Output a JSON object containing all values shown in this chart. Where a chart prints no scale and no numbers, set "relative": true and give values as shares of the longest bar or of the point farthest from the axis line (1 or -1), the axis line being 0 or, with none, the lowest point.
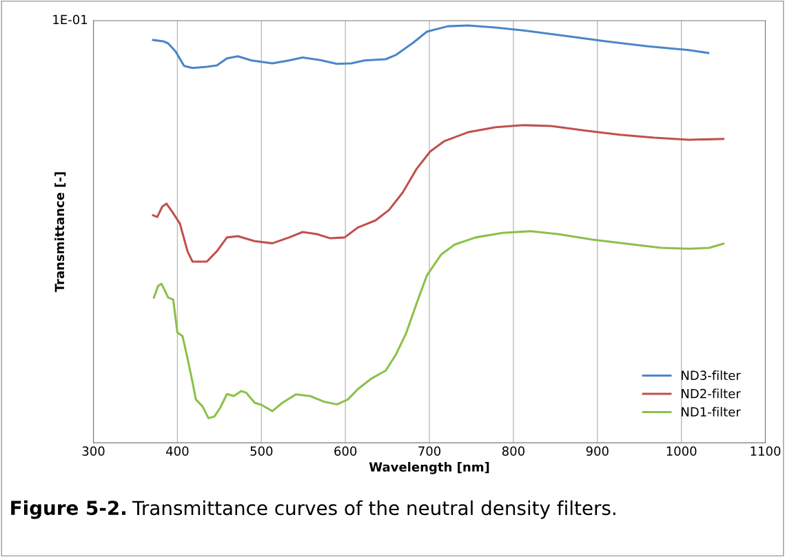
{
  "chart_data": {
    "type": "line",
    "xlabel": "Wavelength [nm]",
    "ylabel": "Transmittance [-]",
    "annotations": [
      "1E-01",
      "Figure 5-2.",
      "Transmittance curves of the neutral density filters."
    ],
    "relative": true,
    "grid": "x",
    "legend": "bottom right",
    "marker": "none",
    "line_style": "solid",
    "xlim": [
      300,
      1100
    ],
    "xticks": [
      300,
      400,
      500,
      600,
      700,
      800,
      900,
      1000,
      1100
    ],
    "series": [
      {
        "name": "ND3-filter",
        "color": "#4a86c8",
        "x": [
          371,
          383,
          389,
          398,
          408,
          418,
          435,
          447,
          459,
          472,
          488,
          513,
          533,
          549,
          570,
          590,
          607,
          623,
          648,
          660,
          681,
          697,
          722,
          746,
          779,
          812,
          861,
          910,
          960,
          1009,
          1032
        ],
        "values": [
          0.965,
          0.962,
          0.957,
          0.937,
          0.903,
          0.898,
          0.901,
          0.904,
          0.921,
          0.926,
          0.916,
          0.909,
          0.916,
          0.923,
          0.917,
          0.908,
          0.909,
          0.916,
          0.919,
          0.929,
          0.959,
          0.985,
          0.998,
          1,
          0.995,
          0.988,
          0.975,
          0.962,
          0.95,
          0.941,
          0.934
        ]
      },
      {
        "name": "ND2-filter",
        "color": "#c0504d",
        "x": [
          371,
          376,
          382,
          387,
          394,
          403,
          412,
          418,
          435,
          447,
          459,
          472,
          492,
          513,
          533,
          549,
          566,
          582,
          599,
          615,
          636,
          652,
          668,
          685,
          701,
          718,
          746,
          779,
          812,
          845,
          886,
          927,
          968,
          1009,
          1050
        ],
        "values": [
          0.545,
          0.541,
          0.566,
          0.573,
          0.553,
          0.525,
          0.459,
          0.434,
          0.434,
          0.459,
          0.492,
          0.495,
          0.483,
          0.478,
          0.492,
          0.505,
          0.5,
          0.49,
          0.492,
          0.516,
          0.533,
          0.558,
          0.599,
          0.657,
          0.698,
          0.723,
          0.744,
          0.756,
          0.761,
          0.759,
          0.748,
          0.738,
          0.731,
          0.726,
          0.728
        ]
      },
      {
        "name": "ND1-filter",
        "color": "#8cc04a",
        "x": [
          372,
          377,
          381,
          385,
          389,
          395,
          400,
          406,
          412,
          418,
          422,
          430,
          437,
          444,
          451,
          459,
          467,
          476,
          482,
          492,
          500,
          513,
          525,
          541,
          558,
          574,
          590,
          603,
          615,
          631,
          648,
          660,
          672,
          685,
          697,
          714,
          730,
          755,
          787,
          820,
          853,
          894,
          935,
          976,
          1009,
          1033,
          1050
        ],
        "values": [
          0.348,
          0.376,
          0.381,
          0.365,
          0.348,
          0.343,
          0.264,
          0.256,
          0.203,
          0.145,
          0.104,
          0.087,
          0.059,
          0.063,
          0.084,
          0.117,
          0.112,
          0.124,
          0.12,
          0.096,
          0.091,
          0.076,
          0.096,
          0.116,
          0.112,
          0.099,
          0.092,
          0.104,
          0.129,
          0.154,
          0.173,
          0.211,
          0.261,
          0.335,
          0.401,
          0.451,
          0.475,
          0.492,
          0.503,
          0.507,
          0.5,
          0.487,
          0.477,
          0.467,
          0.465,
          0.467,
          0.477
        ]
      }
    ]
  }
}
